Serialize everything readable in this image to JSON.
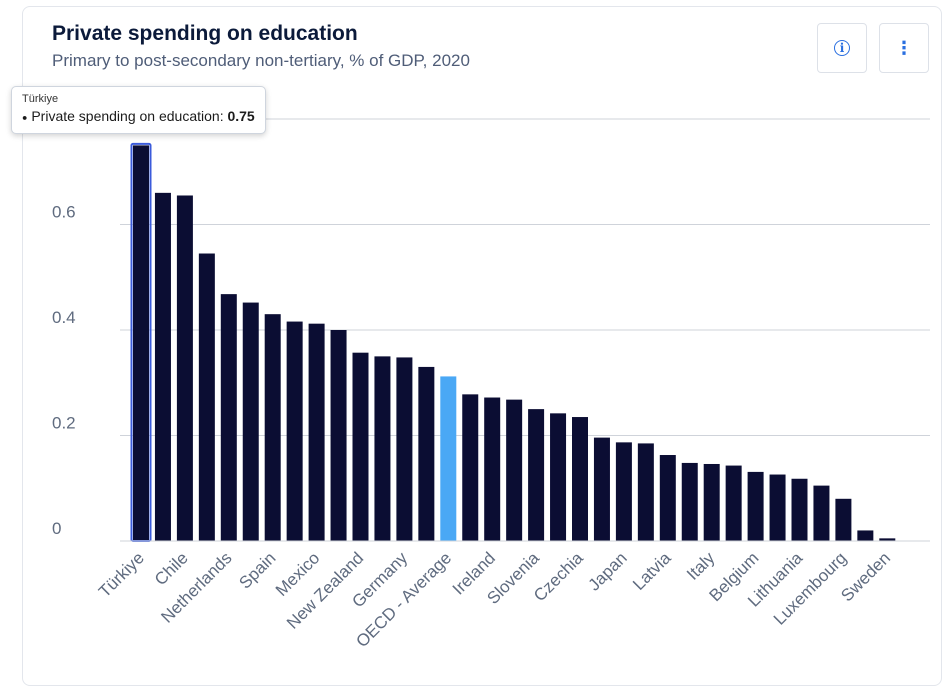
{
  "header": {
    "title": "Private spending on education",
    "subtitle": "Primary to post-secondary non-tertiary, % of GDP, 2020"
  },
  "toolbar": {
    "info_icon": "info-circle-icon",
    "menu_icon": "more-vertical-icon"
  },
  "tooltip": {
    "country": "Türkiye",
    "series": "Private spending on education",
    "separator": ":",
    "value": "0.75"
  },
  "colors": {
    "bar": "#0b0d33",
    "highlight": "#4aa8f5",
    "hover_outline": "#3b5bdb",
    "grid": "#cfd3da",
    "tick": "#5f6b7f"
  },
  "chart_data": {
    "type": "bar",
    "title": "Private spending on education",
    "subtitle": "Primary to post-secondary non-tertiary, % of GDP, 2020",
    "xlabel": "",
    "ylabel": "",
    "ylim": [
      0,
      0.8
    ],
    "yticks": [
      0,
      0.2,
      0.4,
      0.6
    ],
    "ytick_labels": [
      "0",
      "0.2",
      "0.4",
      "0.6"
    ],
    "grid": true,
    "legend": "none",
    "categories": [
      "Türkiye",
      "",
      "Chile",
      "",
      "Netherlands",
      "",
      "Spain",
      "",
      "Mexico",
      "",
      "New Zealand",
      "",
      "Germany",
      "",
      "OECD - Average",
      "",
      "Ireland",
      "",
      "Slovenia",
      "",
      "Czechia",
      "",
      "Japan",
      "",
      "Latvia",
      "",
      "Italy",
      "",
      "Belgium",
      "",
      "Lithuania",
      "",
      "Luxembourg",
      "",
      "Sweden"
    ],
    "values": [
      0.75,
      0.66,
      0.655,
      0.545,
      0.468,
      0.452,
      0.43,
      0.416,
      0.412,
      0.4,
      0.357,
      0.35,
      0.348,
      0.33,
      0.312,
      0.278,
      0.272,
      0.268,
      0.25,
      0.242,
      0.235,
      0.196,
      0.187,
      0.185,
      0.163,
      0.148,
      0.146,
      0.143,
      0.131,
      0.126,
      0.118,
      0.105,
      0.08,
      0.02,
      0.005
    ],
    "highlight_index": 14,
    "hover_index": 0
  }
}
